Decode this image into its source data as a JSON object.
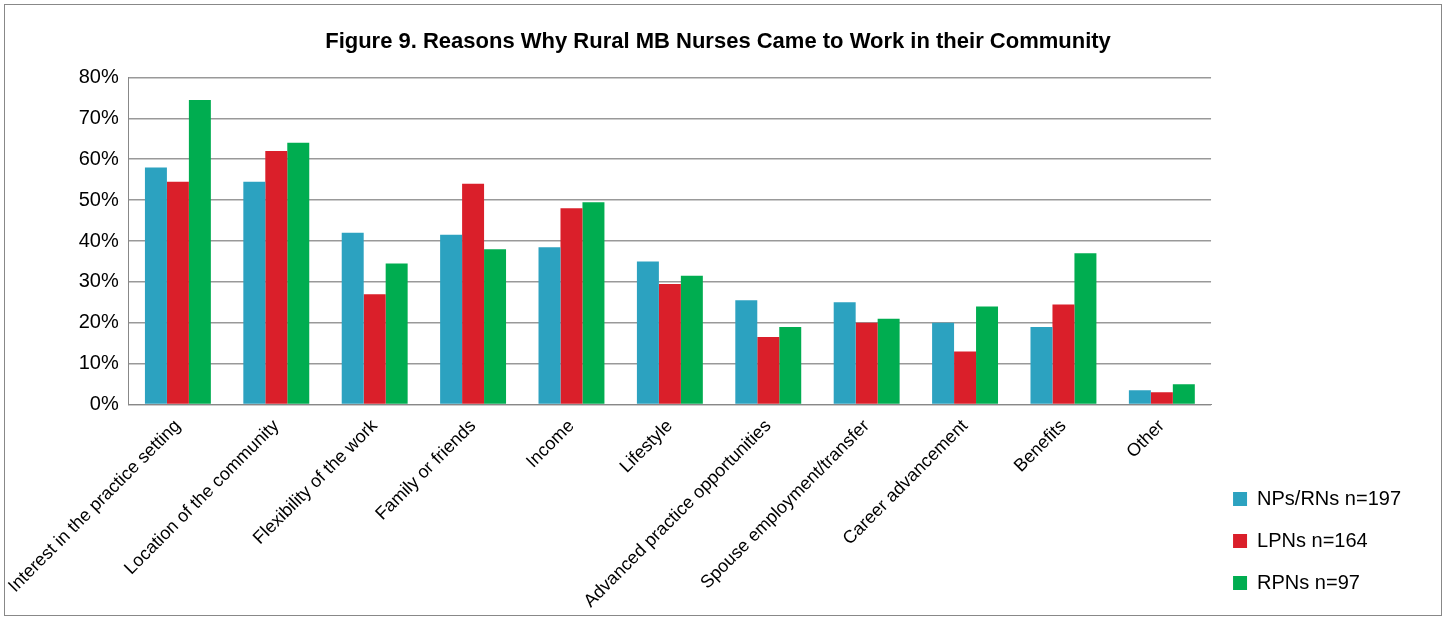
{
  "chart_data": {
    "type": "bar",
    "title": "Figure 9. Reasons Why Rural MB Nurses Came to Work in their Community",
    "categories": [
      "Interest in the practice setting",
      "Location of the community",
      "Flexibility of the work",
      "Family or friends",
      "Income",
      "Lifestyle",
      "Advanced practice opportunities",
      "Spouse employment/transfer",
      "Career advancement",
      "Benefits",
      "Other"
    ],
    "series": [
      {
        "name": "NPs/RNs n=197",
        "color": "#2ca2c0",
        "values": [
          58,
          54.5,
          42,
          41.5,
          38.5,
          35,
          25.5,
          25,
          20,
          19,
          3.5
        ]
      },
      {
        "name": "LPNs n=164",
        "color": "#da1f2a",
        "values": [
          54.5,
          62,
          27,
          54,
          48,
          29.5,
          16.5,
          20,
          13,
          24.5,
          3
        ]
      },
      {
        "name": "RPNs n=97",
        "color": "#00ad50",
        "values": [
          74.5,
          64,
          34.5,
          38,
          49.5,
          31.5,
          19,
          21,
          24,
          37,
          5
        ]
      }
    ],
    "ylim": [
      0,
      80
    ],
    "yticks": [
      {
        "value": 0,
        "label": "0%"
      },
      {
        "value": 10,
        "label": "10%"
      },
      {
        "value": 20,
        "label": "20%"
      },
      {
        "value": 30,
        "label": "30%"
      },
      {
        "value": 40,
        "label": "40%"
      },
      {
        "value": 50,
        "label": "50%"
      },
      {
        "value": 60,
        "label": "60%"
      },
      {
        "value": 70,
        "label": "70%"
      },
      {
        "value": 80,
        "label": "80%"
      }
    ],
    "grid": "y",
    "legend": "bottom right"
  }
}
